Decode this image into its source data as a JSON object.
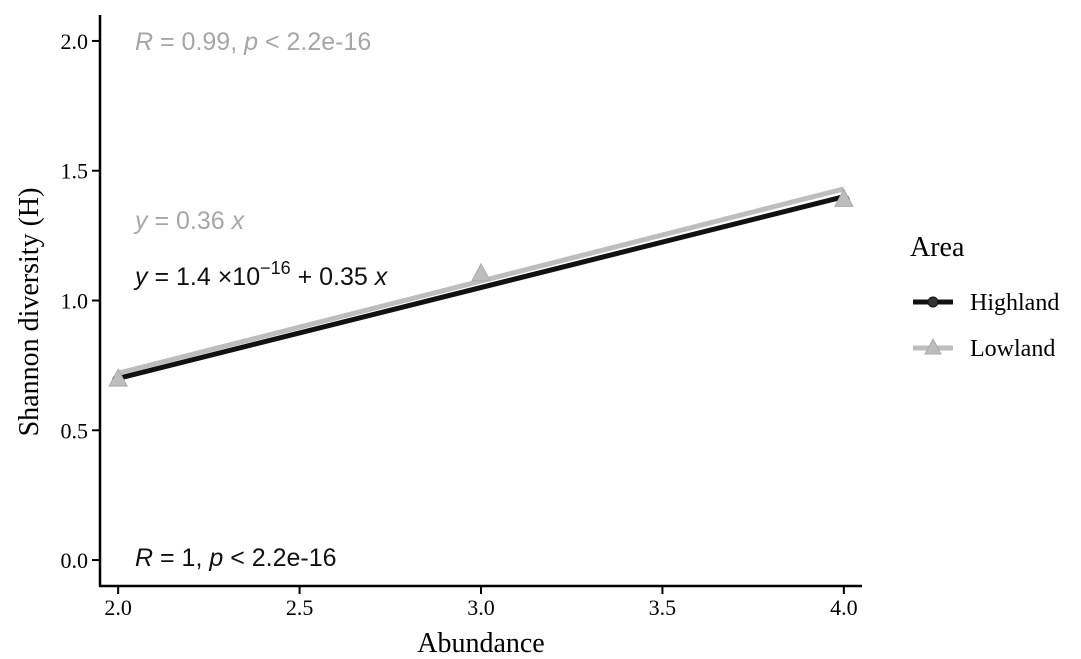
{
  "chart_data": {
    "type": "line",
    "xlabel": "Abundance",
    "ylabel": "Shannon diversity (H)",
    "xlim": [
      1.95,
      4.05
    ],
    "ylim": [
      -0.1,
      2.1
    ],
    "xticks": [
      "2.0",
      "2.5",
      "3.0",
      "3.5",
      "4.0"
    ],
    "xtick_values": [
      2.0,
      2.5,
      3.0,
      3.5,
      4.0
    ],
    "yticks": [
      "0.0",
      "0.5",
      "1.0",
      "1.5",
      "2.0"
    ],
    "ytick_values": [
      0.0,
      0.5,
      1.0,
      1.5,
      2.0
    ],
    "grid": false,
    "legend": {
      "title": "Area",
      "position": "right",
      "entries": [
        "Highland",
        "Lowland"
      ]
    },
    "series": [
      {
        "name": "Highland",
        "color": "#111111",
        "marker": "circle",
        "points": [
          [
            2.0,
            0.693
          ],
          [
            4.0,
            1.386
          ]
        ],
        "fit_line": [
          [
            2.0,
            0.7
          ],
          [
            4.0,
            1.4
          ]
        ]
      },
      {
        "name": "Lowland",
        "color": "#bdbdbd",
        "marker": "triangle",
        "points": [
          [
            2.0,
            0.693
          ],
          [
            3.0,
            1.099
          ],
          [
            4.0,
            1.386
          ]
        ],
        "fit_line": [
          [
            2.0,
            0.72
          ],
          [
            4.0,
            1.43
          ]
        ]
      }
    ],
    "annotations": {
      "lowland_stats": {
        "R_sym": "R",
        "R_rest": " = 0.99, ",
        "p_sym": "p",
        "p_rest": " < 2.2e-16",
        "color": "#a6a6a6"
      },
      "lowland_eq": {
        "y_sym": "y",
        "mid": " = 0.36 ",
        "x_sym": "x",
        "color": "#a6a6a6"
      },
      "highland_eq": {
        "y_sym": "y",
        "mid1": " = 1.4 ×10",
        "exp": "−16",
        "mid2": " + 0.35 ",
        "x_sym": "x",
        "color": "#111111"
      },
      "highland_stats": {
        "R_sym": "R",
        "R_rest": " = 1, ",
        "p_sym": "p",
        "p_rest": " < 2.2e-16",
        "color": "#111111"
      }
    }
  }
}
